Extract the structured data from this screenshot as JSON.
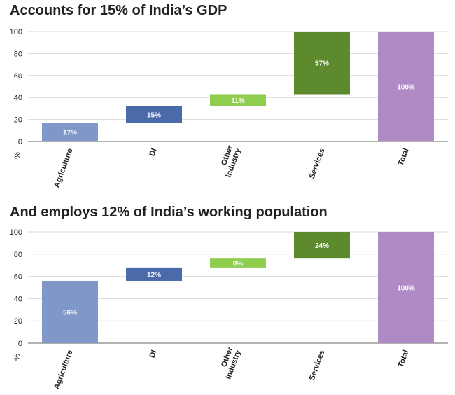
{
  "chart_data": [
    {
      "type": "bar",
      "subtype": "waterfall",
      "title": "Accounts for 15% of India’s GDP",
      "ylabel": "%",
      "ylim": [
        0,
        100
      ],
      "yticks": [
        0,
        20,
        40,
        60,
        80,
        100
      ],
      "grid": true,
      "categories": [
        "Agriculture",
        "DI",
        "Other\nIndustry",
        "Services",
        "Total"
      ],
      "values": [
        17,
        15,
        11,
        57,
        100
      ],
      "labels": [
        "17%",
        "15%",
        "11%",
        "57%",
        "100%"
      ],
      "bases": [
        0,
        17,
        32,
        43,
        0
      ],
      "colors": [
        "#7f97c9",
        "#4a6aaa",
        "#8fcd4f",
        "#5e8a2e",
        "#b08ac4"
      ]
    },
    {
      "type": "bar",
      "subtype": "waterfall",
      "title": "And employs 12% of India’s working population",
      "ylabel": "%",
      "ylim": [
        0,
        100
      ],
      "yticks": [
        0,
        20,
        40,
        60,
        80,
        100
      ],
      "grid": true,
      "categories": [
        "Agriculture",
        "DI",
        "Other\nIndustry",
        "Services",
        "Total"
      ],
      "values": [
        56,
        12,
        8,
        24,
        100
      ],
      "labels": [
        "56%",
        "12%",
        "8%",
        "24%",
        "100%"
      ],
      "bases": [
        0,
        56,
        68,
        76,
        0
      ],
      "colors": [
        "#7f97c9",
        "#4a6aaa",
        "#8fcd4f",
        "#5e8a2e",
        "#b08ac4"
      ]
    }
  ]
}
